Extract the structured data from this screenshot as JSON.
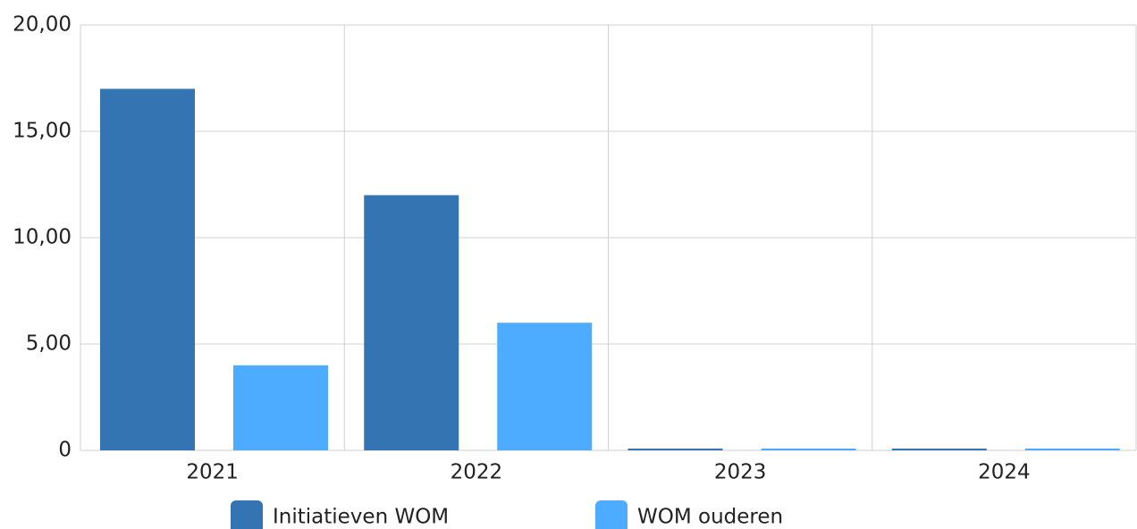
{
  "chart_data": {
    "type": "bar",
    "categories": [
      "2021",
      "2022",
      "2023",
      "2024"
    ],
    "series": [
      {
        "name": "Initiatieven WOM",
        "color": "#3574b2",
        "values": [
          17,
          12,
          0,
          0
        ]
      },
      {
        "name": "WOM ouderen",
        "color": "#4dacff",
        "values": [
          4,
          6,
          0,
          0
        ]
      }
    ],
    "ylim": [
      0,
      20
    ],
    "yticks": [
      0,
      {
        "value": 5,
        "label": "5,00"
      },
      {
        "value": 10,
        "label": "10,00"
      },
      {
        "value": 15,
        "label": "15,00"
      },
      {
        "value": 20,
        "label": "20,00"
      }
    ],
    "grid": true
  }
}
